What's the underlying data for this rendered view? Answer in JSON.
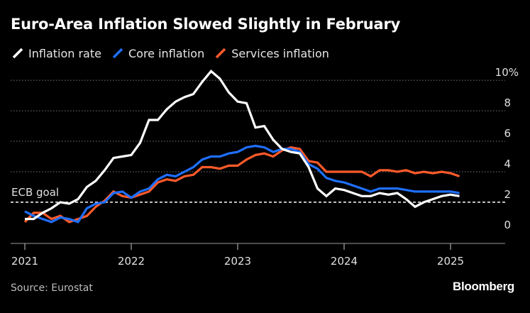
{
  "colors": {
    "inflation": "#ffffff",
    "core": "#1f6fff",
    "services": "#ff5a2a",
    "grid": "#7a7a7a",
    "axis_text": "#e0e0e0"
  },
  "brand": "Bloomberg",
  "source": "Source: Eurostat",
  "chart_data": {
    "type": "line",
    "title": "Euro-Area Inflation Slowed Slightly in February",
    "xlabel": "",
    "ylabel": "",
    "x_start": "2021-01",
    "xlim": [
      2021.0,
      2025.5
    ],
    "ylim": [
      -0.8,
      10.8
    ],
    "y_ticks": [
      {
        "value": 10,
        "label": "10%"
      },
      {
        "value": 8,
        "label": "8"
      },
      {
        "value": 6,
        "label": "6"
      },
      {
        "value": 4,
        "label": "4"
      },
      {
        "value": 2,
        "label": "2"
      },
      {
        "value": 0,
        "label": "0"
      }
    ],
    "x_ticks": [
      {
        "value": 2021,
        "label": "2021"
      },
      {
        "value": 2022,
        "label": "2022"
      },
      {
        "value": 2023,
        "label": "2023"
      },
      {
        "value": 2024,
        "label": "2024"
      },
      {
        "value": 2025,
        "label": "2025"
      }
    ],
    "reference_line": {
      "value": 2,
      "label": "ECB goal"
    },
    "series": [
      {
        "key": "inflation",
        "name": "Inflation rate",
        "values": [
          0.9,
          0.9,
          1.3,
          1.6,
          2.0,
          1.9,
          2.2,
          3.0,
          3.4,
          4.1,
          4.9,
          5.0,
          5.1,
          5.9,
          7.4,
          7.4,
          8.1,
          8.6,
          8.9,
          9.1,
          9.9,
          10.6,
          10.1,
          9.2,
          8.6,
          8.5,
          6.9,
          7.0,
          6.1,
          5.5,
          5.3,
          5.2,
          4.3,
          2.9,
          2.4,
          2.9,
          2.8,
          2.6,
          2.4,
          2.4,
          2.6,
          2.5,
          2.6,
          2.2,
          1.7,
          2.0,
          2.2,
          2.4,
          2.5,
          2.4
        ]
      },
      {
        "key": "core",
        "name": "Core inflation",
        "values": [
          1.4,
          1.1,
          0.9,
          0.7,
          1.0,
          0.9,
          0.7,
          1.6,
          1.9,
          2.0,
          2.6,
          2.7,
          2.3,
          2.7,
          2.9,
          3.5,
          3.8,
          3.7,
          4.0,
          4.3,
          4.8,
          5.0,
          5.0,
          5.2,
          5.3,
          5.6,
          5.7,
          5.6,
          5.3,
          5.5,
          5.5,
          5.3,
          4.5,
          4.2,
          3.6,
          3.4,
          3.3,
          3.1,
          2.9,
          2.7,
          2.9,
          2.9,
          2.9,
          2.8,
          2.7,
          2.7,
          2.7,
          2.7,
          2.7,
          2.6
        ]
      },
      {
        "key": "services",
        "name": "Services inflation",
        "values": [
          0.7,
          1.3,
          1.3,
          0.9,
          1.1,
          0.7,
          0.9,
          1.1,
          1.7,
          2.1,
          2.7,
          2.4,
          2.3,
          2.5,
          2.7,
          3.3,
          3.5,
          3.4,
          3.7,
          3.8,
          4.3,
          4.3,
          4.2,
          4.4,
          4.4,
          4.8,
          5.1,
          5.2,
          5.0,
          5.4,
          5.6,
          5.5,
          4.7,
          4.6,
          4.0,
          4.0,
          4.0,
          4.0,
          4.0,
          3.7,
          4.1,
          4.1,
          4.0,
          4.1,
          3.9,
          4.0,
          3.9,
          4.0,
          3.9,
          3.7
        ]
      }
    ]
  }
}
